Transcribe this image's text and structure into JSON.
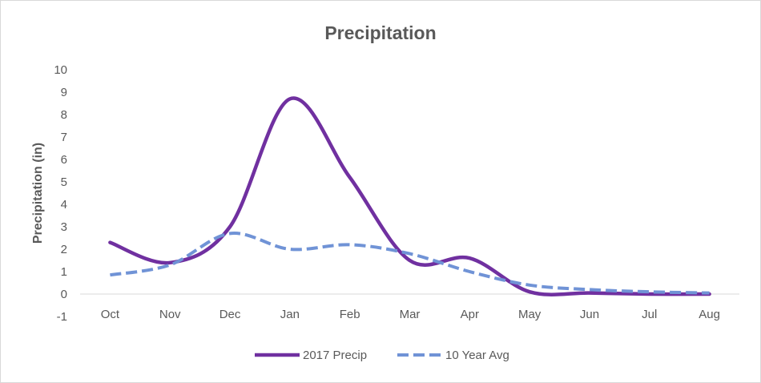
{
  "chart_data": {
    "type": "line",
    "title": "Precipitation",
    "xlabel": "",
    "ylabel": "Precipitation (in)",
    "categories": [
      "Oct",
      "Nov",
      "Dec",
      "Jan",
      "Feb",
      "Mar",
      "Apr",
      "May",
      "Jun",
      "Jul",
      "Aug"
    ],
    "yticks": [
      "10",
      "9",
      "8",
      "7",
      "6",
      "5",
      "4",
      "3",
      "2",
      "1",
      "0",
      "-1"
    ],
    "ylim": [
      -1,
      10
    ],
    "grid": false,
    "legend_position": "bottom",
    "series": [
      {
        "name": "2017 Precip",
        "values": [
          2.3,
          1.4,
          3.0,
          8.7,
          5.2,
          1.5,
          1.6,
          0.1,
          0.05,
          0.0,
          0.0
        ],
        "color": "#7030A0",
        "style": "solid"
      },
      {
        "name": "10 Year Avg",
        "values": [
          0.85,
          1.3,
          2.7,
          2.0,
          2.2,
          1.8,
          1.0,
          0.4,
          0.2,
          0.1,
          0.05
        ],
        "color": "#7093D6",
        "style": "dashed"
      }
    ]
  }
}
